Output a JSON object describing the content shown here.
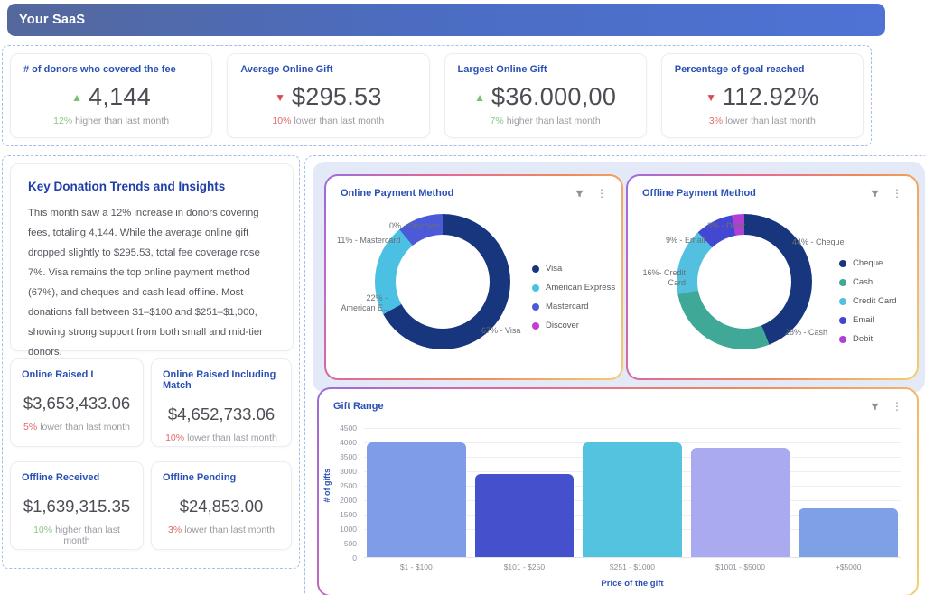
{
  "header": {
    "title": "Your SaaS"
  },
  "kpis": [
    {
      "title": "# of donors who covered the fee",
      "value": "4,144",
      "arrow": "▲",
      "pct": "12%",
      "trend_rest": "higher than last month"
    },
    {
      "title": "Average Online Gift",
      "value": "$295.53",
      "arrow": "▼",
      "pct": "10%",
      "trend_rest": "lower than last month"
    },
    {
      "title": "Largest Online Gift",
      "value": "$36.000,00",
      "arrow": "▲",
      "pct": "7%",
      "trend_rest": "higher than last month"
    },
    {
      "title": "Percentage of goal reached",
      "value": "112.92%",
      "arrow": "▼",
      "pct": "3%",
      "trend_rest": "lower than last month"
    }
  ],
  "insights": {
    "heading": "Key Donation Trends and Insights",
    "body": "This month saw a 12% increase in donors covering fees, totaling 4,144. While the average online gift dropped slightly to $295.53, total fee coverage rose 7%. Visa remains the top online payment method (67%), and cheques and cash lead offline. Most donations fall between $1–$100 and $251–$1,000, showing strong support from both small and mid-tier donors."
  },
  "stats": [
    {
      "title": "Online Raised I",
      "value": "$3,653,433.06",
      "pct": "5%",
      "trend_rest": "lower than last month"
    },
    {
      "title": "Online Raised Including Match",
      "value": "$4,652,733.06",
      "pct": "10%",
      "trend_rest": "lower than last month"
    },
    {
      "title": "Offline Received",
      "value": "$1,639,315.35",
      "pct": "10%",
      "trend_rest": "higher than last month"
    },
    {
      "title": "Offline Pending",
      "value": "$24,853.00",
      "pct": "3%",
      "trend_rest": "lower than last month"
    }
  ],
  "ui": {
    "kebab_glyph": "⋮"
  },
  "chart_data": [
    {
      "type": "pie",
      "title": "Online Payment Method",
      "legend_position": "right",
      "slices": [
        {
          "label": "Visa",
          "value": 67,
          "color": "#17367d",
          "callout": "67% - Visa"
        },
        {
          "label": "American Express",
          "value": 22,
          "color": "#4cc0e3",
          "callout": "22% - American E.."
        },
        {
          "label": "Mastercard",
          "value": 11,
          "color": "#4b5ad6",
          "callout": "11% - Mastercard"
        },
        {
          "label": "Discover",
          "value": 0,
          "color": "#c53ecf",
          "callout": "0% - Discover"
        }
      ]
    },
    {
      "type": "pie",
      "title": "Offline Payment Method",
      "legend_position": "right",
      "slices": [
        {
          "label": "Cheque",
          "value": 44,
          "color": "#17367d",
          "callout": "44% - Cheque"
        },
        {
          "label": "Cash",
          "value": 28,
          "color": "#3fa896",
          "callout": "28% - Cash"
        },
        {
          "label": "Credit Card",
          "value": 16,
          "color": "#53c0e0",
          "callout": "16%- Credit Card"
        },
        {
          "label": "Email",
          "value": 9,
          "color": "#4348d2",
          "callout": "9% - Email"
        },
        {
          "label": "Debit",
          "value": 3,
          "color": "#b13fd4",
          "callout": "3% - Debit"
        }
      ]
    },
    {
      "type": "bar",
      "title": "Gift Range",
      "categories": [
        "$1 - $100",
        "$101 - $250",
        "$251 - $1000",
        "$1001 - $5000",
        "+$5000"
      ],
      "values": [
        4000,
        2900,
        4000,
        3800,
        1700
      ],
      "colors": [
        "#7f9ce8",
        "#4450cc",
        "#53c3e0",
        "#aaaaf0",
        "#7ea1e6"
      ],
      "xlabel": "Price of the gift",
      "ylabel": "# of gifts",
      "ylim": [
        0,
        4500
      ],
      "yticks": [
        4500,
        4000,
        3500,
        3000,
        2500,
        2000,
        1500,
        1000,
        500,
        0
      ],
      "grid": true
    }
  ]
}
